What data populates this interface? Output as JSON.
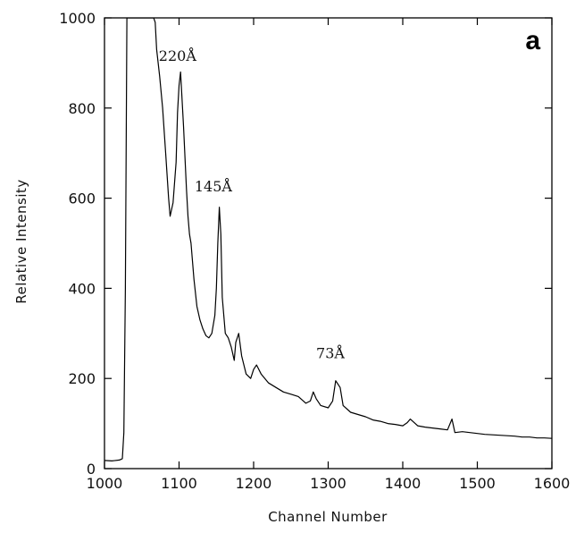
{
  "chart_data": {
    "type": "line",
    "title": "",
    "panel_label": "a",
    "xlabel": "Channel Number",
    "ylabel": "Relative Intensity",
    "xlim": [
      1000,
      1600
    ],
    "ylim": [
      0,
      1000
    ],
    "xticks": [
      1000,
      1100,
      1200,
      1300,
      1400,
      1500,
      1600
    ],
    "yticks": [
      0,
      200,
      400,
      600,
      800,
      1000
    ],
    "grid": false,
    "series": [
      {
        "color": "#000000",
        "x": [
          1000,
          1010,
          1020,
          1024,
          1026,
          1028,
          1030,
          1040,
          1050,
          1060,
          1064,
          1066,
          1068,
          1070,
          1074,
          1078,
          1082,
          1086,
          1088,
          1092,
          1096,
          1098,
          1100,
          1102,
          1106,
          1110,
          1112,
          1114,
          1116,
          1120,
          1124,
          1128,
          1132,
          1136,
          1140,
          1144,
          1148,
          1150,
          1152,
          1154,
          1156,
          1158,
          1162,
          1166,
          1170,
          1174,
          1176,
          1180,
          1184,
          1190,
          1196,
          1200,
          1204,
          1210,
          1220,
          1230,
          1240,
          1250,
          1260,
          1270,
          1276,
          1280,
          1284,
          1290,
          1300,
          1306,
          1310,
          1316,
          1320,
          1330,
          1340,
          1350,
          1360,
          1370,
          1380,
          1390,
          1400,
          1406,
          1410,
          1420,
          1430,
          1440,
          1450,
          1460,
          1466,
          1470,
          1480,
          1490,
          1500,
          1510,
          1520,
          1530,
          1540,
          1550,
          1560,
          1570,
          1580,
          1590,
          1600
        ],
        "y": [
          18,
          17,
          19,
          22,
          80,
          400,
          1000,
          1000,
          1000,
          1000,
          1000,
          1000,
          990,
          930,
          870,
          800,
          700,
          600,
          560,
          590,
          680,
          790,
          850,
          880,
          760,
          620,
          560,
          520,
          500,
          420,
          360,
          330,
          310,
          295,
          290,
          300,
          340,
          400,
          500,
          580,
          520,
          380,
          300,
          290,
          270,
          240,
          280,
          300,
          250,
          210,
          200,
          220,
          230,
          210,
          190,
          180,
          170,
          165,
          160,
          145,
          150,
          170,
          155,
          140,
          135,
          150,
          195,
          180,
          140,
          125,
          120,
          115,
          108,
          105,
          100,
          98,
          95,
          102,
          110,
          95,
          92,
          90,
          88,
          86,
          110,
          80,
          82,
          80,
          78,
          76,
          75,
          74,
          73,
          72,
          70,
          70,
          68,
          68,
          67
        ]
      }
    ],
    "annotations": [
      {
        "text": "220Å",
        "x": 1098,
        "y": 905
      },
      {
        "text": "145Å",
        "x": 1146,
        "y": 615
      },
      {
        "text": "73Å",
        "x": 1303,
        "y": 245
      }
    ]
  }
}
